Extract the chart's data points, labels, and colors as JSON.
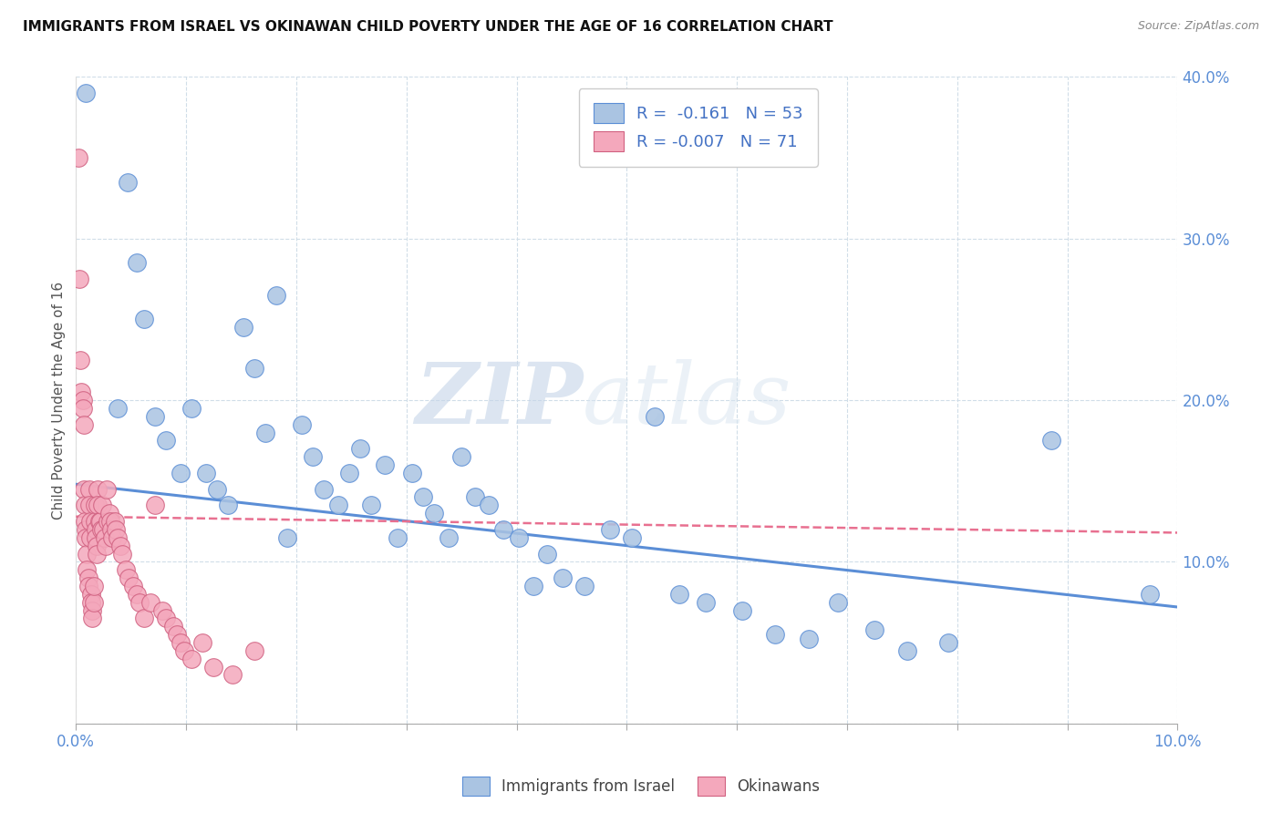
{
  "title": "IMMIGRANTS FROM ISRAEL VS OKINAWAN CHILD POVERTY UNDER THE AGE OF 16 CORRELATION CHART",
  "source": "Source: ZipAtlas.com",
  "ylabel": "Child Poverty Under the Age of 16",
  "xmin": 0.0,
  "xmax": 10.0,
  "ymin": 0.0,
  "ymax": 40.0,
  "blue_R": -0.161,
  "blue_N": 53,
  "pink_R": -0.007,
  "pink_N": 71,
  "blue_color": "#aac4e2",
  "pink_color": "#f4a8bc",
  "blue_line_color": "#5b8ed6",
  "pink_line_color": "#e87090",
  "blue_edge_color": "#5b8ed6",
  "pink_edge_color": "#d06080",
  "legend_label_blue": "Immigrants from Israel",
  "legend_label_pink": "Okinawans",
  "watermark_zip": "ZIP",
  "watermark_atlas": "atlas",
  "blue_trend_x": [
    0.0,
    10.0
  ],
  "blue_trend_y": [
    14.8,
    7.2
  ],
  "pink_trend_x": [
    0.0,
    10.0
  ],
  "pink_trend_y": [
    12.8,
    11.8
  ],
  "blue_scatter_x": [
    0.38,
    0.09,
    0.47,
    0.55,
    0.62,
    0.72,
    0.82,
    0.95,
    1.05,
    1.18,
    1.28,
    1.38,
    1.52,
    1.62,
    1.72,
    1.82,
    1.92,
    2.05,
    2.15,
    2.25,
    2.38,
    2.48,
    2.58,
    2.68,
    2.8,
    2.92,
    3.05,
    3.15,
    3.25,
    3.38,
    3.5,
    3.62,
    3.75,
    3.88,
    4.02,
    4.15,
    4.28,
    4.42,
    4.62,
    4.85,
    5.05,
    5.25,
    5.48,
    5.72,
    6.05,
    6.35,
    6.65,
    6.92,
    7.25,
    7.55,
    7.92,
    8.85,
    9.75
  ],
  "blue_scatter_y": [
    19.5,
    39.0,
    33.5,
    28.5,
    25.0,
    19.0,
    17.5,
    15.5,
    19.5,
    15.5,
    14.5,
    13.5,
    24.5,
    22.0,
    18.0,
    26.5,
    11.5,
    18.5,
    16.5,
    14.5,
    13.5,
    15.5,
    17.0,
    13.5,
    16.0,
    11.5,
    15.5,
    14.0,
    13.0,
    11.5,
    16.5,
    14.0,
    13.5,
    12.0,
    11.5,
    8.5,
    10.5,
    9.0,
    8.5,
    12.0,
    11.5,
    19.0,
    8.0,
    7.5,
    7.0,
    5.5,
    5.2,
    7.5,
    5.8,
    4.5,
    5.0,
    17.5,
    8.0
  ],
  "pink_scatter_x": [
    0.02,
    0.03,
    0.04,
    0.05,
    0.06,
    0.06,
    0.07,
    0.07,
    0.08,
    0.08,
    0.09,
    0.09,
    0.1,
    0.1,
    0.11,
    0.11,
    0.12,
    0.12,
    0.13,
    0.13,
    0.14,
    0.14,
    0.15,
    0.15,
    0.16,
    0.16,
    0.17,
    0.17,
    0.18,
    0.18,
    0.19,
    0.19,
    0.2,
    0.2,
    0.21,
    0.22,
    0.23,
    0.24,
    0.25,
    0.26,
    0.27,
    0.28,
    0.29,
    0.3,
    0.31,
    0.32,
    0.33,
    0.35,
    0.36,
    0.38,
    0.4,
    0.42,
    0.45,
    0.48,
    0.52,
    0.55,
    0.58,
    0.62,
    0.68,
    0.72,
    0.78,
    0.82,
    0.88,
    0.92,
    0.95,
    0.98,
    1.05,
    1.15,
    1.25,
    1.42,
    1.62
  ],
  "pink_scatter_y": [
    35.0,
    27.5,
    22.5,
    20.5,
    20.0,
    19.5,
    18.5,
    14.5,
    13.5,
    12.5,
    12.0,
    11.5,
    10.5,
    9.5,
    9.0,
    8.5,
    14.5,
    13.5,
    12.5,
    11.5,
    8.0,
    7.5,
    7.0,
    6.5,
    7.5,
    8.5,
    13.5,
    12.5,
    12.0,
    11.5,
    11.0,
    10.5,
    14.5,
    13.5,
    12.5,
    12.5,
    12.0,
    13.5,
    12.0,
    11.5,
    11.0,
    14.5,
    12.5,
    13.0,
    12.5,
    12.0,
    11.5,
    12.5,
    12.0,
    11.5,
    11.0,
    10.5,
    9.5,
    9.0,
    8.5,
    8.0,
    7.5,
    6.5,
    7.5,
    13.5,
    7.0,
    6.5,
    6.0,
    5.5,
    5.0,
    4.5,
    4.0,
    5.0,
    3.5,
    3.0,
    4.5
  ]
}
